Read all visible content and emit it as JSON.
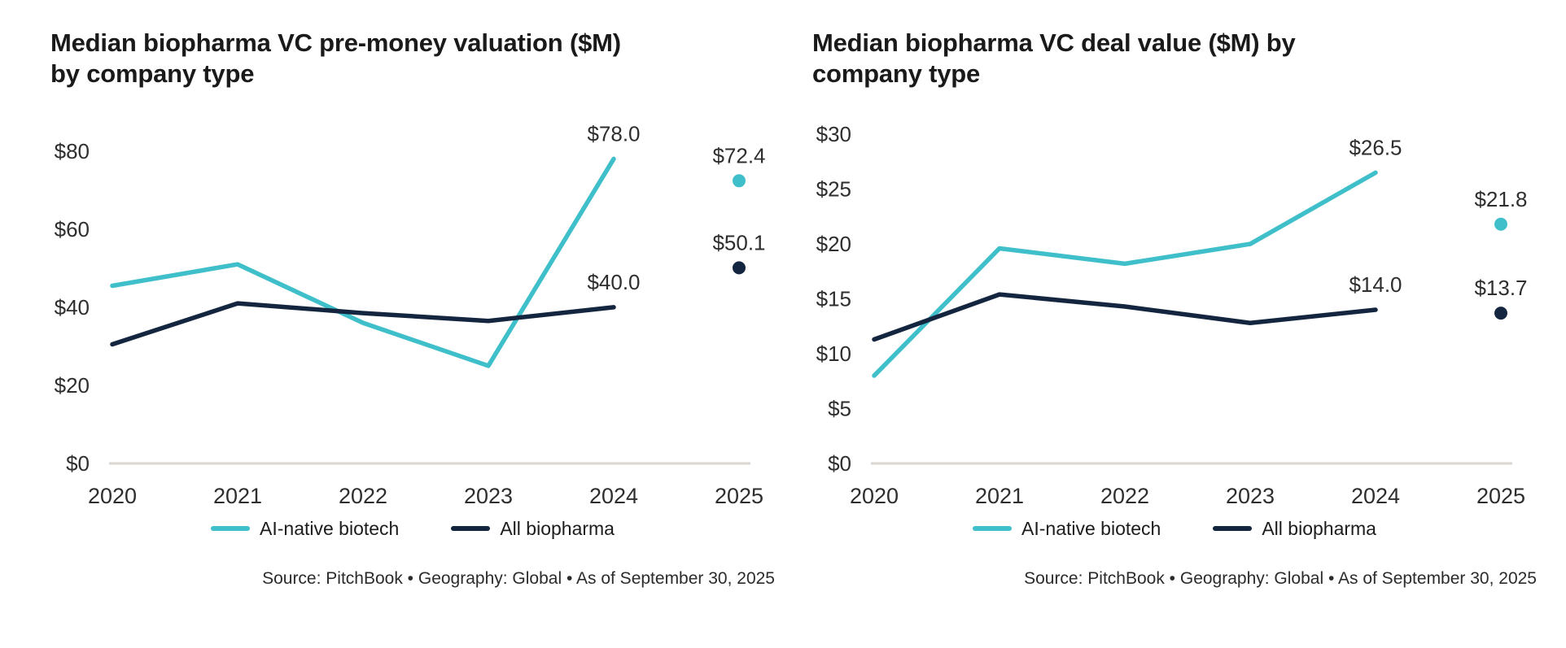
{
  "colors": {
    "teal": "#3FBFCA",
    "navy": "#14263F",
    "axis_line": "#DBD7D0",
    "title_text": "#1A1A1A",
    "tick_text": "#2E2E2E",
    "source_text": "#2B2B2B",
    "background": "#FFFFFF"
  },
  "chart_data": [
    {
      "type": "line",
      "title_line1": "Median biopharma VC pre-money valuation ($M)",
      "title_line2": "by company type",
      "x_labels": [
        "2020",
        "2021",
        "2022",
        "2023",
        "2024",
        "2025"
      ],
      "y_ticks": [
        0,
        20,
        40,
        60,
        80
      ],
      "y_tick_labels": [
        "$0",
        "$20",
        "$40",
        "$60",
        "$80"
      ],
      "ylim": [
        0,
        86
      ],
      "grid": false,
      "legend_position": "bottom",
      "axis_color": "#DBD7D0",
      "series": [
        {
          "name": "AI-native biotech",
          "color": "#3FBFCA",
          "values": [
            45.5,
            51,
            36,
            25,
            78.0,
            72.4
          ],
          "line_end_index": 4,
          "isolated_point_indices": [
            5
          ],
          "point_labels": [
            null,
            null,
            null,
            null,
            "$78.0",
            "$72.4"
          ]
        },
        {
          "name": "All biopharma",
          "color": "#14263F",
          "values": [
            30.5,
            41,
            38.5,
            36.5,
            40.0,
            50.1
          ],
          "line_end_index": 4,
          "isolated_point_indices": [
            5
          ],
          "point_labels": [
            null,
            null,
            null,
            null,
            "$40.0",
            "$50.1"
          ]
        }
      ],
      "source": "Source: PitchBook  •  Geography: Global  •  As of September 30, 2025"
    },
    {
      "type": "line",
      "title_line1": "Median biopharma VC deal value ($M) by",
      "title_line2": "company type",
      "x_labels": [
        "2020",
        "2021",
        "2022",
        "2023",
        "2024",
        "2025"
      ],
      "y_ticks": [
        0,
        5,
        10,
        15,
        20,
        25,
        30
      ],
      "y_tick_labels": [
        "$0",
        "$5",
        "$10",
        "$15",
        "$20",
        "$25",
        "$30"
      ],
      "ylim": [
        0,
        30.6
      ],
      "grid": false,
      "legend_position": "bottom",
      "axis_color": "#DBD7D0",
      "series": [
        {
          "name": "AI-native biotech",
          "color": "#3FBFCA",
          "values": [
            8,
            19.6,
            18.2,
            20,
            26.5,
            21.8
          ],
          "line_end_index": 4,
          "isolated_point_indices": [
            5
          ],
          "point_labels": [
            null,
            null,
            null,
            null,
            "$26.5",
            "$21.8"
          ]
        },
        {
          "name": "All biopharma",
          "color": "#14263F",
          "values": [
            11.3,
            15.4,
            14.3,
            12.8,
            14.0,
            13.7
          ],
          "line_end_index": 4,
          "isolated_point_indices": [
            5
          ],
          "point_labels": [
            null,
            null,
            null,
            null,
            "$14.0",
            "$13.7"
          ]
        }
      ],
      "source": "Source: PitchBook  •  Geography: Global  •  As of September 30, 2025"
    }
  ]
}
